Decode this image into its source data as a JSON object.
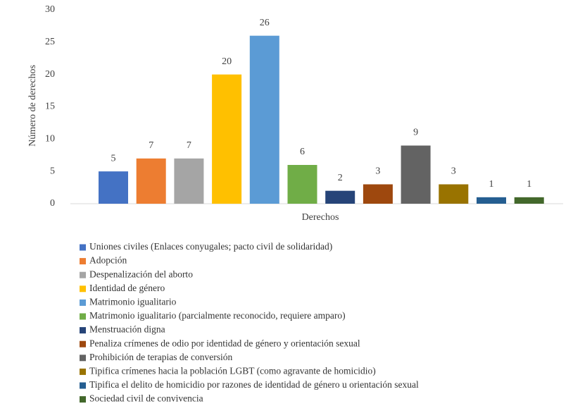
{
  "chart_data": {
    "type": "bar",
    "ylabel": "Número de derechos",
    "xlabel": "Derechos",
    "categories": [
      "Derechos"
    ],
    "ylim": [
      0,
      30
    ],
    "yticks": [
      0,
      5,
      10,
      15,
      20,
      25,
      30
    ],
    "grid": false,
    "series": [
      {
        "name": "Uniones civiles (Enlaces conyugales; pacto civil de solidaridad)",
        "color": "#4472c4",
        "values": [
          5
        ]
      },
      {
        "name": "Adopción",
        "color": "#ed7d31",
        "values": [
          7
        ]
      },
      {
        "name": "Despenalización del aborto",
        "color": "#a5a5a5",
        "values": [
          7
        ]
      },
      {
        "name": "Identidad de género",
        "color": "#ffc000",
        "values": [
          20
        ]
      },
      {
        "name": "Matrimonio igualitario",
        "color": "#5b9bd5",
        "values": [
          26
        ]
      },
      {
        "name": "Matrimonio igualitario (parcialmente reconocido, requiere amparo)",
        "color": "#70ad47",
        "values": [
          6
        ]
      },
      {
        "name": "Menstruación digna",
        "color": "#264478",
        "values": [
          2
        ]
      },
      {
        "name": "Penaliza crímenes de odio por identidad de género y orientación sexual",
        "color": "#9e480e",
        "values": [
          3
        ]
      },
      {
        "name": "Prohibición de terapias de conversión",
        "color": "#636363",
        "values": [
          9
        ]
      },
      {
        "name": "Tipifica crímenes hacia la población LGBT (como agravante de homicidio)",
        "color": "#997300",
        "values": [
          3
        ]
      },
      {
        "name": "Tipifica el delito de homicidio por razones de identidad de género u orientación sexual",
        "color": "#255e91",
        "values": [
          1
        ]
      },
      {
        "name": "Sociedad civil de convivencia",
        "color": "#43682b",
        "values": [
          1
        ]
      }
    ]
  }
}
